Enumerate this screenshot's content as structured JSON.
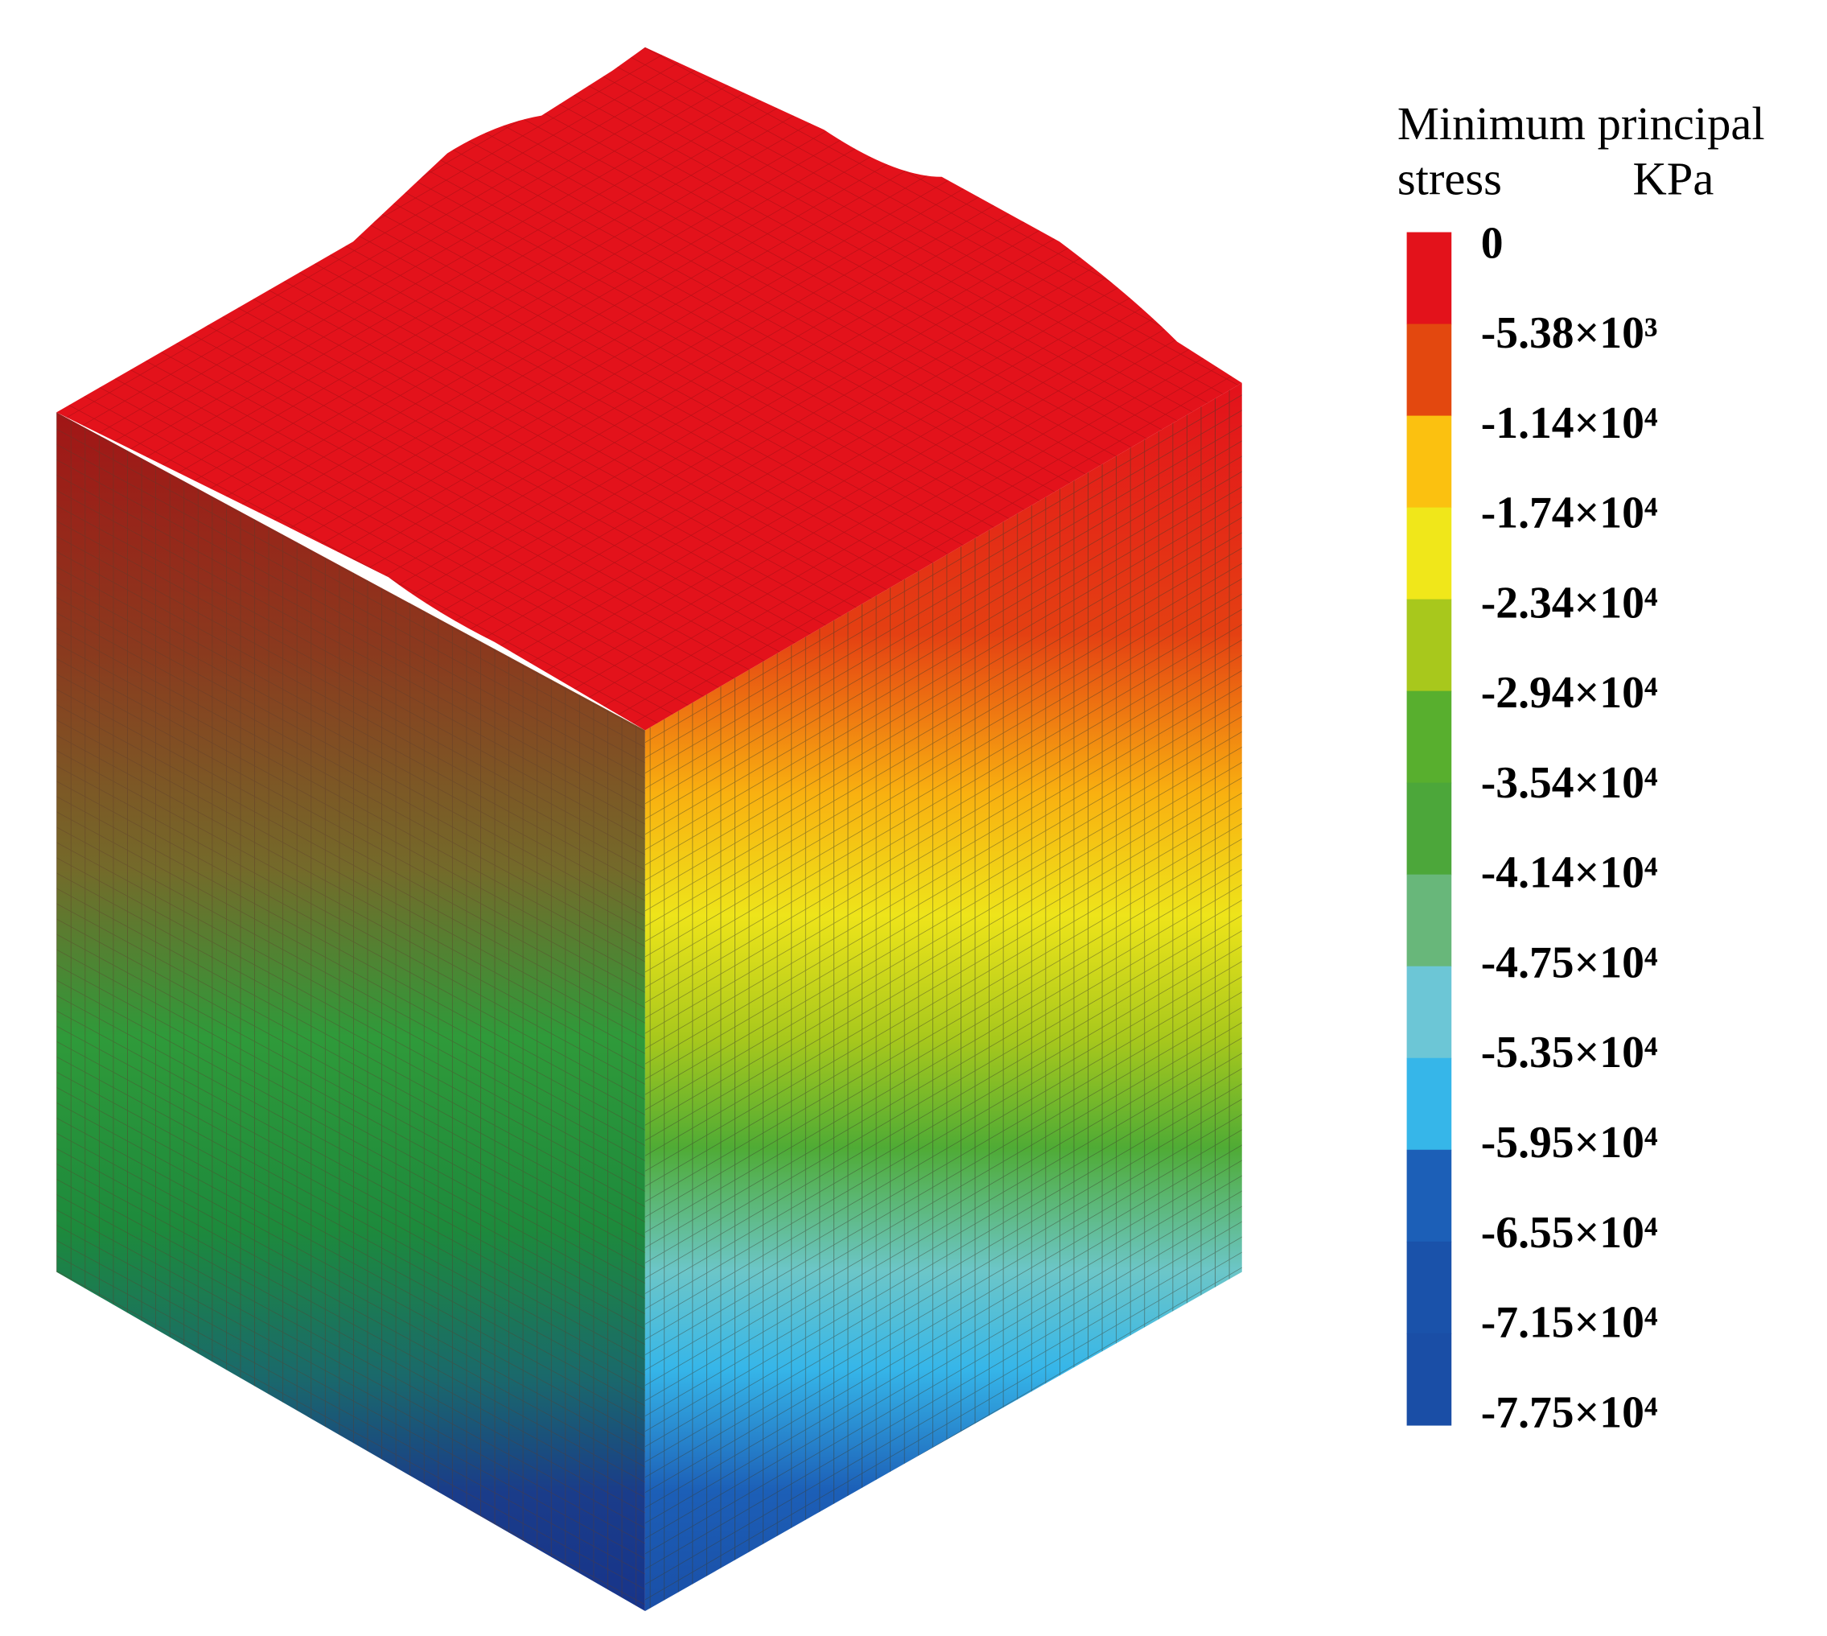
{
  "legend": {
    "title_line1": "Minimum principal",
    "title_line2": "stress",
    "unit": "KPa",
    "labels": [
      "0",
      "-5.38×10³",
      "-1.14×10⁴",
      "-1.74×10⁴",
      "-2.34×10⁴",
      "-2.94×10⁴",
      "-3.54×10⁴",
      "-4.14×10⁴",
      "-4.75×10⁴",
      "-5.35×10⁴",
      "-5.95×10⁴",
      "-6.55×10⁴",
      "-7.15×10⁴",
      "-7.75×10⁴"
    ],
    "colors": [
      "#e3121b",
      "#e3480f",
      "#fbc110",
      "#f0e71a",
      "#a8c81c",
      "#58af2e",
      "#4ca73a",
      "#68b77a",
      "#6cc6d6",
      "#36b6e9",
      "#1c5fb7",
      "#1a52aa",
      "#1a4ea6"
    ]
  }
}
